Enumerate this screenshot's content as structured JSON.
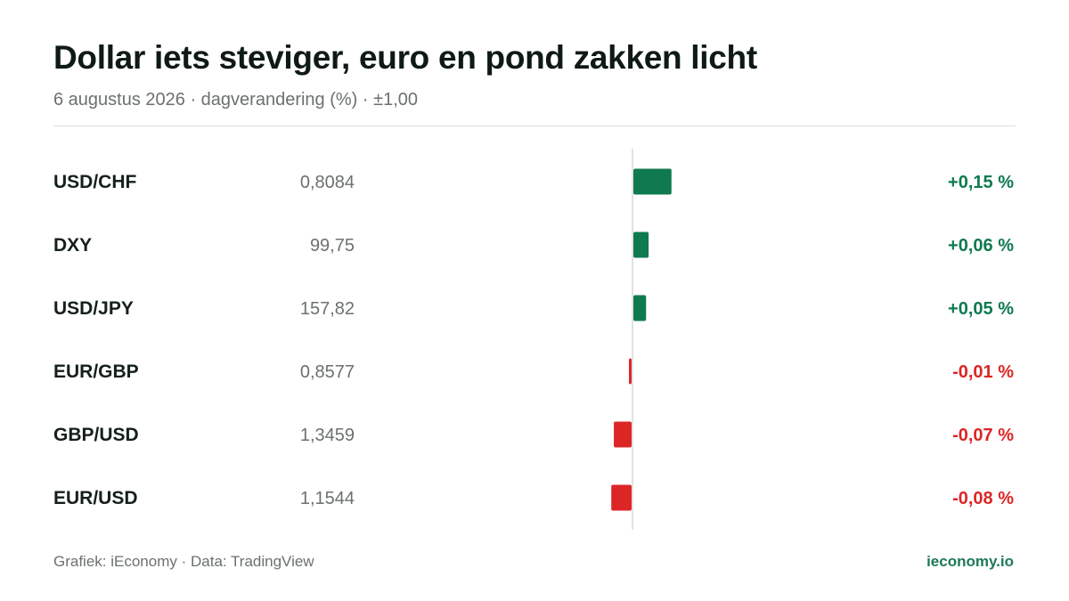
{
  "title": "Dollar iets steviger, euro en pond zakken licht",
  "subtitle": "6 augustus 2026 · dagverandering (%) · ±1,00",
  "footer": {
    "source": "Grafiek: iEconomy · Data: TradingView",
    "brand": "ieconomy.io"
  },
  "colors": {
    "positive": "#0f7a4f",
    "negative": "#dc2626",
    "axis": "#d7dad8",
    "label": "#15201b",
    "value": "#6b716e"
  },
  "chart_data": {
    "type": "bar",
    "orientation": "horizontal",
    "title": "Dollar iets steviger, euro en pond zakken licht",
    "subtitle": "6 augustus 2026 · dagverandering (%) · ±1,00",
    "xlim": [
      -1.0,
      1.0
    ],
    "grid": false,
    "rows": [
      {
        "pair": "USD/CHF",
        "price": "0,8084",
        "change": 0.15,
        "change_label": "+0,15 %"
      },
      {
        "pair": "DXY",
        "price": "99,75",
        "change": 0.06,
        "change_label": "+0,06 %"
      },
      {
        "pair": "USD/JPY",
        "price": "157,82",
        "change": 0.05,
        "change_label": "+0,05 %"
      },
      {
        "pair": "EUR/GBP",
        "price": "0,8577",
        "change": -0.01,
        "change_label": "-0,01 %"
      },
      {
        "pair": "GBP/USD",
        "price": "1,3459",
        "change": -0.07,
        "change_label": "-0,07 %"
      },
      {
        "pair": "EUR/USD",
        "price": "1,1544",
        "change": -0.08,
        "change_label": "-0,08 %"
      }
    ]
  }
}
